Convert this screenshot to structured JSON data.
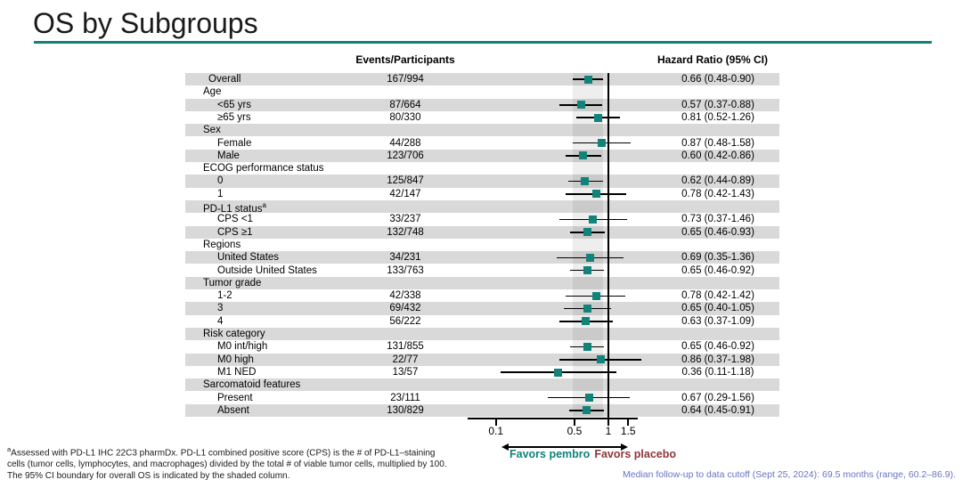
{
  "title": "OS by Subgroups",
  "colors": {
    "accent": "#0F837B",
    "marker": "#12837A",
    "favors_placebo": "#8E3639",
    "cutoff_note": "#6674C4",
    "row_band": "#D9D9D9"
  },
  "table": {
    "col_events": "Events/Participants",
    "col_hr": "Hazard Ratio (95% CI)"
  },
  "chart_data": {
    "type": "scatter",
    "variant": "forest-plot",
    "x_scale": "log",
    "x_ticks": [
      0.1,
      0.5,
      1,
      1.5
    ],
    "x_tick_labels": [
      "0.1",
      "0.5",
      "1",
      "1.5"
    ],
    "reference_line_x": 1,
    "shaded_band": {
      "from": 0.48,
      "to": 0.9
    },
    "rows": [
      {
        "type": "overall",
        "label": "Overall",
        "events": "167/994",
        "hr_text": "0.66 (0.48-0.90)",
        "hr": 0.66,
        "lo": 0.48,
        "hi": 0.9
      },
      {
        "type": "group",
        "label": "Age"
      },
      {
        "type": "data",
        "label": "<65 yrs",
        "events": "87/664",
        "hr_text": "0.57 (0.37-0.88)",
        "hr": 0.57,
        "lo": 0.37,
        "hi": 0.88
      },
      {
        "type": "data",
        "label": "≥65 yrs",
        "events": "80/330",
        "hr_text": "0.81 (0.52-1.26)",
        "hr": 0.81,
        "lo": 0.52,
        "hi": 1.26
      },
      {
        "type": "group",
        "label": "Sex"
      },
      {
        "type": "data",
        "label": "Female",
        "events": "44/288",
        "hr_text": "0.87 (0.48-1.58)",
        "hr": 0.87,
        "lo": 0.48,
        "hi": 1.58
      },
      {
        "type": "data",
        "label": "Male",
        "events": "123/706",
        "hr_text": "0.60 (0.42-0.86)",
        "hr": 0.6,
        "lo": 0.42,
        "hi": 0.86
      },
      {
        "type": "group",
        "label": "ECOG performance status"
      },
      {
        "type": "data",
        "label": "0",
        "events": "125/847",
        "hr_text": "0.62 (0.44-0.89)",
        "hr": 0.62,
        "lo": 0.44,
        "hi": 0.89
      },
      {
        "type": "data",
        "label": "1",
        "events": "42/147",
        "hr_text": "0.78 (0.42-1.43)",
        "hr": 0.78,
        "lo": 0.42,
        "hi": 1.43
      },
      {
        "type": "group",
        "label": "PD-L1 status",
        "sup": "a"
      },
      {
        "type": "data",
        "label": "CPS <1",
        "events": "33/237",
        "hr_text": "0.73 (0.37-1.46)",
        "hr": 0.73,
        "lo": 0.37,
        "hi": 1.46
      },
      {
        "type": "data",
        "label": "CPS ≥1",
        "events": "132/748",
        "hr_text": "0.65 (0.46-0.93)",
        "hr": 0.65,
        "lo": 0.46,
        "hi": 0.93
      },
      {
        "type": "group",
        "label": "Regions"
      },
      {
        "type": "data",
        "label": "United States",
        "events": "34/231",
        "hr_text": "0.69 (0.35-1.36)",
        "hr": 0.69,
        "lo": 0.35,
        "hi": 1.36
      },
      {
        "type": "data",
        "label": "Outside United States",
        "events": "133/763",
        "hr_text": "0.65 (0.46-0.92)",
        "hr": 0.65,
        "lo": 0.46,
        "hi": 0.92
      },
      {
        "type": "group",
        "label": "Tumor grade"
      },
      {
        "type": "data",
        "label": "1-2",
        "events": "42/338",
        "hr_text": "0.78 (0.42-1.42)",
        "hr": 0.78,
        "lo": 0.42,
        "hi": 1.42
      },
      {
        "type": "data",
        "label": "3",
        "events": "69/432",
        "hr_text": "0.65 (0.40-1.05)",
        "hr": 0.65,
        "lo": 0.4,
        "hi": 1.05
      },
      {
        "type": "data",
        "label": "4",
        "events": "56/222",
        "hr_text": "0.63 (0.37-1.09)",
        "hr": 0.63,
        "lo": 0.37,
        "hi": 1.09
      },
      {
        "type": "group",
        "label": "Risk category"
      },
      {
        "type": "data",
        "label": "M0 int/high",
        "events": "131/855",
        "hr_text": "0.65 (0.46-0.92)",
        "hr": 0.65,
        "lo": 0.46,
        "hi": 0.92
      },
      {
        "type": "data",
        "label": "M0 high",
        "events": "22/77",
        "hr_text": "0.86 (0.37-1.98)",
        "hr": 0.86,
        "lo": 0.37,
        "hi": 1.98
      },
      {
        "type": "data",
        "label": "M1 NED",
        "events": "13/57",
        "hr_text": "0.36 (0.11-1.18)",
        "hr": 0.36,
        "lo": 0.11,
        "hi": 1.18
      },
      {
        "type": "group",
        "label": "Sarcomatoid features"
      },
      {
        "type": "data",
        "label": "Present",
        "events": "23/111",
        "hr_text": "0.67 (0.29-1.56)",
        "hr": 0.67,
        "lo": 0.29,
        "hi": 1.56
      },
      {
        "type": "data",
        "label": "Absent",
        "events": "130/829",
        "hr_text": "0.64 (0.45-0.91)",
        "hr": 0.64,
        "lo": 0.45,
        "hi": 0.91
      }
    ]
  },
  "favors": {
    "left": "Favors pembro",
    "right": "Favors placebo"
  },
  "footnote": {
    "sup": "a",
    "line1": "Assessed with PD-L1 IHC 22C3 pharmDx. PD-L1 combined positive score (CPS) is the # of PD-L1–staining",
    "line2": "cells (tumor cells, lymphocytes, and macrophages) divided by the total # of viable tumor cells, multiplied by 100.",
    "line3": "The 95% CI boundary for overall OS is indicated by the shaded column."
  },
  "cutoff_note": "Median follow-up to data cutoff (Sept 25, 2024): 69.5 months (range, 60.2–86.9)."
}
